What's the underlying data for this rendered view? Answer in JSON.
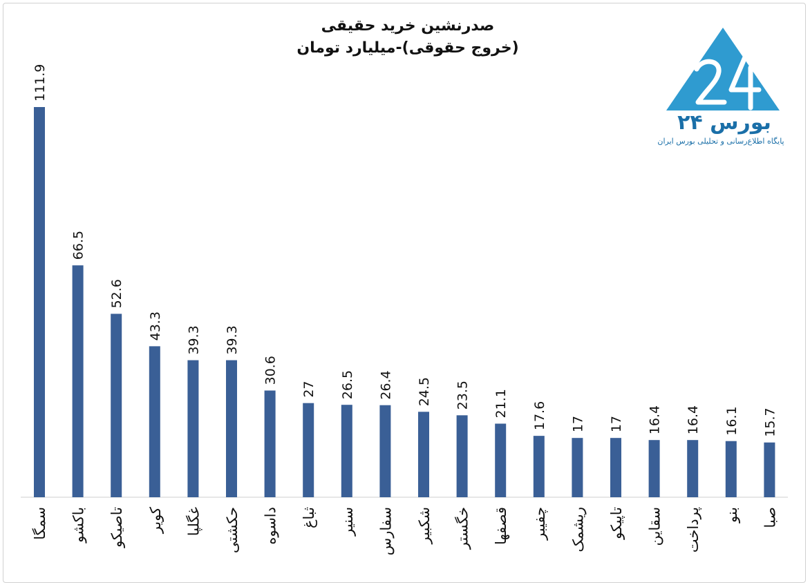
{
  "chart_data": {
    "type": "bar",
    "title_line1": "صدرنشین خرید حقیقی",
    "title_line2": "(خروج حقوقی)-میلیارد تومان",
    "categories": [
      "سمگا",
      "باکشو",
      "تاصیکو",
      "کویر",
      "غگلپا",
      "حکشتی",
      "داسوه",
      "ثباغ",
      "سنیر",
      "سفارس",
      "شکبیر",
      "خگستر",
      "قصفها",
      "چفیبر",
      "ریشمک",
      "تاپیکو",
      "سقاین",
      "پرداخت",
      "بنو",
      "صبا"
    ],
    "values": [
      111.9,
      66.5,
      52.6,
      43.3,
      39.3,
      39.3,
      30.6,
      27,
      26.5,
      26.4,
      24.5,
      23.5,
      21.1,
      17.6,
      17,
      17,
      16.4,
      16.4,
      16.1,
      15.7
    ],
    "ylim": [
      0,
      115
    ],
    "bar_color": "#3a5f96",
    "grid": false,
    "legend": "none"
  },
  "logo": {
    "name": "بورس ۲۴",
    "tagline": "پایگاه اطلاع‌رسانی و تحلیلی بورس ایران",
    "color": "#2f9bd0"
  }
}
